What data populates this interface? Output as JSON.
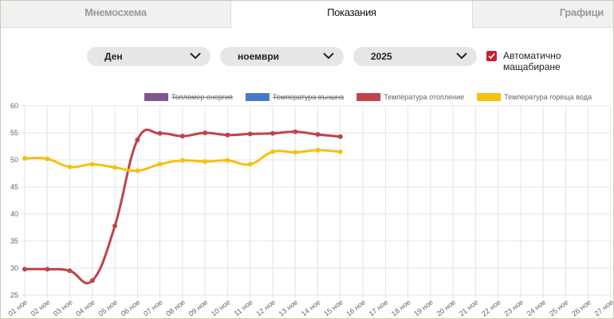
{
  "tabs": [
    "Мнемосхема",
    "Показания",
    "Графици"
  ],
  "active_tab": 1,
  "controls": {
    "period": "Ден",
    "month": "ноември",
    "year": "2025",
    "auto_scale": {
      "label": "Автоматично мащабиране",
      "checked": true
    }
  },
  "chart_data": {
    "type": "line",
    "categories": [
      "01 ное",
      "02 ное",
      "03 ное",
      "04 ное",
      "05 ное",
      "06 ное",
      "07 ное",
      "08 ное",
      "09 ное",
      "10 ное",
      "11 ное",
      "12 ное",
      "13 ное",
      "14 ное",
      "15 ное",
      "16 ное",
      "17 ное",
      "18 ное",
      "19 ное",
      "20 ное",
      "21 ное",
      "22 ное",
      "23 ное",
      "24 ное",
      "25 ное",
      "26 ное",
      "27 ное"
    ],
    "series": [
      {
        "name": "Топломер енергия",
        "color": "#7e5690",
        "hidden": true
      },
      {
        "name": "Температура външна",
        "color": "#4a78c8",
        "hidden": true
      },
      {
        "name": "Температура отопление",
        "color": "#c0434a",
        "values": [
          29.8,
          29.8,
          29.5,
          27.7,
          37.8,
          53.7,
          54.9,
          54.4,
          55.0,
          54.6,
          54.8,
          54.9,
          55.2,
          54.7,
          54.3,
          null,
          null,
          null,
          null,
          null,
          null,
          null,
          null,
          null,
          null,
          null,
          null
        ]
      },
      {
        "name": "Температура гореща вода",
        "color": "#f5c010",
        "values": [
          50.3,
          50.2,
          48.7,
          49.2,
          48.6,
          48.0,
          49.2,
          49.9,
          49.7,
          49.9,
          49.2,
          51.5,
          51.4,
          51.8,
          51.5,
          null,
          null,
          null,
          null,
          null,
          null,
          null,
          null,
          null,
          null,
          null,
          null
        ]
      }
    ],
    "ylim": [
      25,
      60
    ],
    "yticks": [
      25,
      30,
      35,
      40,
      45,
      50,
      55,
      60
    ],
    "grid": true
  }
}
